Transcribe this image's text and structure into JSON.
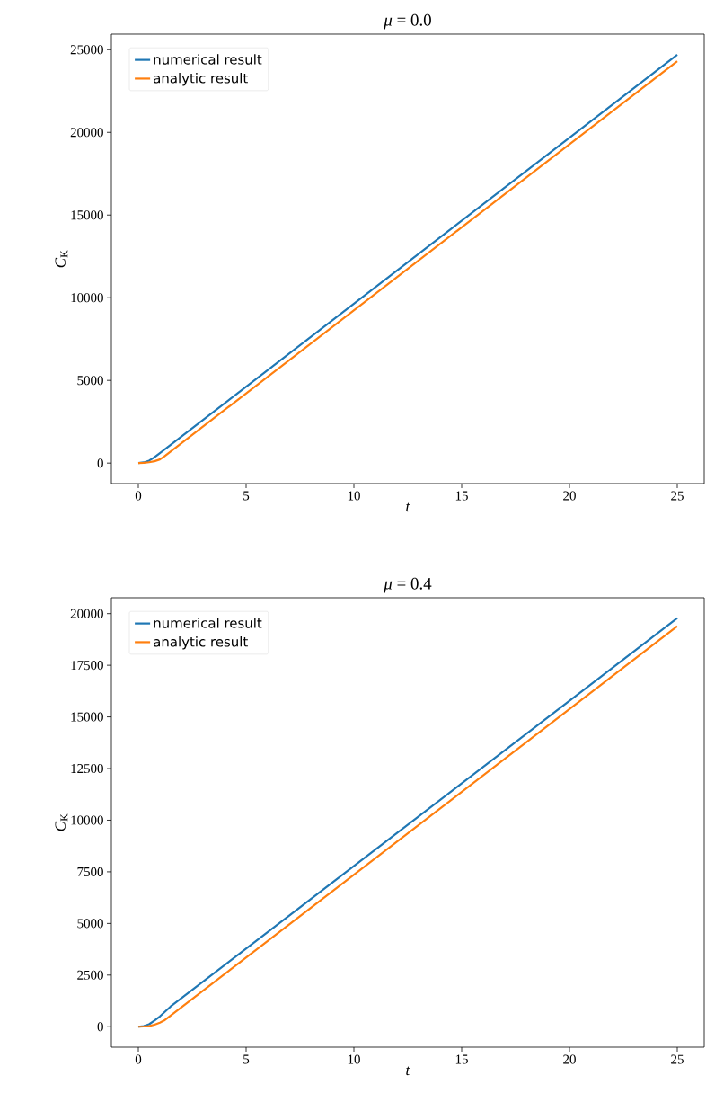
{
  "chart_data": [
    {
      "type": "line",
      "title": "*μ* = 0.0",
      "xlabel": "*t*",
      "ylabel": "*C*$_{K}$",
      "legend": "top left",
      "xlim": [
        -1.25,
        26.25
      ],
      "ylim": [
        -1240,
        25940
      ],
      "xticks": [
        0,
        5,
        10,
        15,
        20,
        25
      ],
      "yticks": [
        0,
        5000,
        10000,
        15000,
        20000,
        25000
      ],
      "series": [
        {
          "name": "numerical result",
          "color": "#1f77b4",
          "x": [
            0,
            0.25,
            0.5,
            0.75,
            1,
            1.5,
            25
          ],
          "values": [
            0,
            40,
            150,
            350,
            600,
            1100,
            24700
          ]
        },
        {
          "name": "analytic result",
          "color": "#ff7f0e",
          "x": [
            0,
            0.25,
            0.5,
            0.75,
            1,
            1.2,
            25
          ],
          "values": [
            0,
            15,
            50,
            110,
            220,
            400,
            24300
          ]
        }
      ]
    },
    {
      "type": "line",
      "title": "*μ* = 0.4",
      "xlabel": "*t*",
      "ylabel": "*C*$_{K}$",
      "legend": "top left",
      "xlim": [
        -1.25,
        26.25
      ],
      "ylim": [
        -990,
        20770
      ],
      "xticks": [
        0,
        5,
        10,
        15,
        20,
        25
      ],
      "yticks": [
        0,
        2500,
        5000,
        7500,
        10000,
        12500,
        15000,
        17500,
        20000
      ],
      "series": [
        {
          "name": "numerical result",
          "color": "#1f77b4",
          "x": [
            0,
            0.25,
            0.5,
            0.75,
            1,
            1.5,
            25
          ],
          "values": [
            0,
            30,
            120,
            300,
            500,
            980,
            19780
          ]
        },
        {
          "name": "analytic result",
          "color": "#ff7f0e",
          "x": [
            0,
            0.25,
            0.5,
            0.75,
            1,
            1.2,
            25
          ],
          "values": [
            0,
            10,
            30,
            100,
            200,
            300,
            19390
          ]
        }
      ]
    }
  ]
}
